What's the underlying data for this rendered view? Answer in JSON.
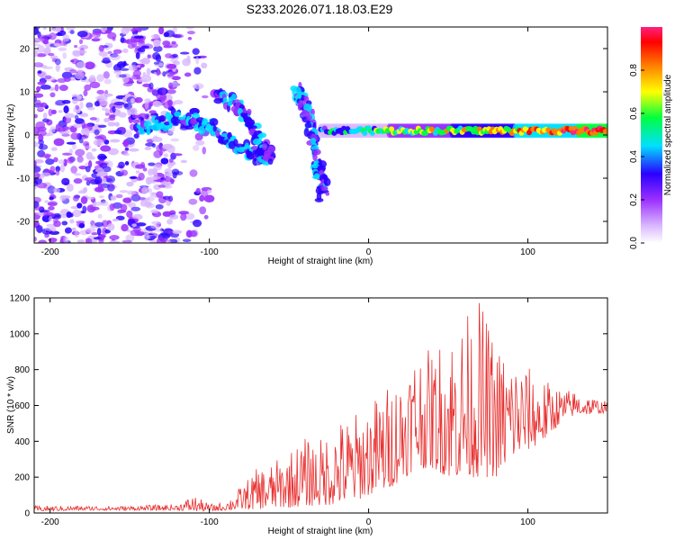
{
  "title": "S233.2026.071.18.03.E29",
  "chart_data": [
    {
      "type": "heatmap",
      "description_scope": "spectrogram",
      "xlabel": "Height of straight line (km)",
      "ylabel": "Frequency (Hz)",
      "xlim": [
        -210,
        150
      ],
      "ylim": [
        -25,
        25
      ],
      "xticks": [
        -200,
        -100,
        0,
        100
      ],
      "xtick_labels": [
        "-200",
        "-100",
        "0",
        "100"
      ],
      "yticks": [
        -20,
        -10,
        0,
        10,
        20
      ],
      "ytick_labels": [
        "-20",
        "-10",
        "0",
        "10",
        "20"
      ],
      "colorbar": {
        "label": "Normalized spectral amplitude",
        "range": [
          0,
          1
        ],
        "ticks": [
          0.0,
          0.2,
          0.4,
          0.6,
          0.8
        ],
        "tick_labels": [
          "0.0",
          "0.2",
          "0.4",
          "0.6",
          "0.8"
        ],
        "colormap": [
          "#ffffff",
          "#d9b8ff",
          "#9b30ff",
          "#2a00ff",
          "#00e0ff",
          "#00ff40",
          "#ffff00",
          "#ff8000",
          "#ff0000",
          "#ff2080"
        ]
      },
      "features": [
        {
          "name": "diffuse noise region",
          "x_range": [
            -210,
            -120
          ],
          "freq_range": [
            -25,
            25
          ],
          "amplitude": 0.15
        },
        {
          "name": "descending streak",
          "points": [
            [
              -145,
              1
            ],
            [
              -120,
              4
            ],
            [
              -100,
              2
            ],
            [
              -80,
              -3
            ],
            [
              -65,
              -6
            ]
          ],
          "amplitude": 0.25
        },
        {
          "name": "descending streak 2",
          "points": [
            [
              -95,
              10
            ],
            [
              -80,
              6
            ],
            [
              -68,
              -2
            ],
            [
              -62,
              -5
            ]
          ],
          "amplitude": 0.2
        },
        {
          "name": "descending streak 3",
          "points": [
            [
              -45,
              10
            ],
            [
              -38,
              5
            ],
            [
              -32,
              -6
            ],
            [
              -28,
              -14
            ]
          ],
          "amplitude": 0.2
        },
        {
          "name": "main zero-frequency band",
          "x_range": [
            -30,
            150
          ],
          "freq": 1,
          "amplitude_start": 0.4,
          "amplitude_end": 0.9
        }
      ]
    },
    {
      "type": "line",
      "xlabel": "Height of straight line (km)",
      "ylabel": "SNR (10 * v/v)",
      "xlim": [
        -210,
        150
      ],
      "ylim": [
        0,
        1200
      ],
      "xticks": [
        -200,
        -100,
        0,
        100
      ],
      "xtick_labels": [
        "-200",
        "-100",
        "0",
        "100"
      ],
      "yticks": [
        0,
        200,
        400,
        600,
        800,
        1000,
        1200
      ],
      "ytick_labels": [
        "0",
        "200",
        "400",
        "600",
        "800",
        "1000",
        "1200"
      ],
      "color": "#e83030",
      "envelope": {
        "x": [
          -210,
          -180,
          -150,
          -120,
          -110,
          -100,
          -90,
          -80,
          -70,
          -60,
          -50,
          -40,
          -30,
          -20,
          -10,
          0,
          10,
          20,
          30,
          40,
          50,
          60,
          70,
          80,
          90,
          100,
          110,
          120,
          130,
          140,
          150
        ],
        "low": [
          10,
          15,
          15,
          15,
          10,
          10,
          15,
          20,
          20,
          30,
          30,
          40,
          40,
          50,
          60,
          100,
          120,
          180,
          250,
          250,
          200,
          200,
          200,
          200,
          300,
          350,
          400,
          500,
          550,
          550,
          560
        ],
        "high": [
          40,
          40,
          40,
          50,
          100,
          50,
          60,
          150,
          250,
          280,
          350,
          420,
          420,
          520,
          550,
          620,
          700,
          800,
          950,
          900,
          1050,
          1100,
          1200,
          950,
          900,
          820,
          750,
          700,
          680,
          650,
          620
        ]
      }
    }
  ]
}
